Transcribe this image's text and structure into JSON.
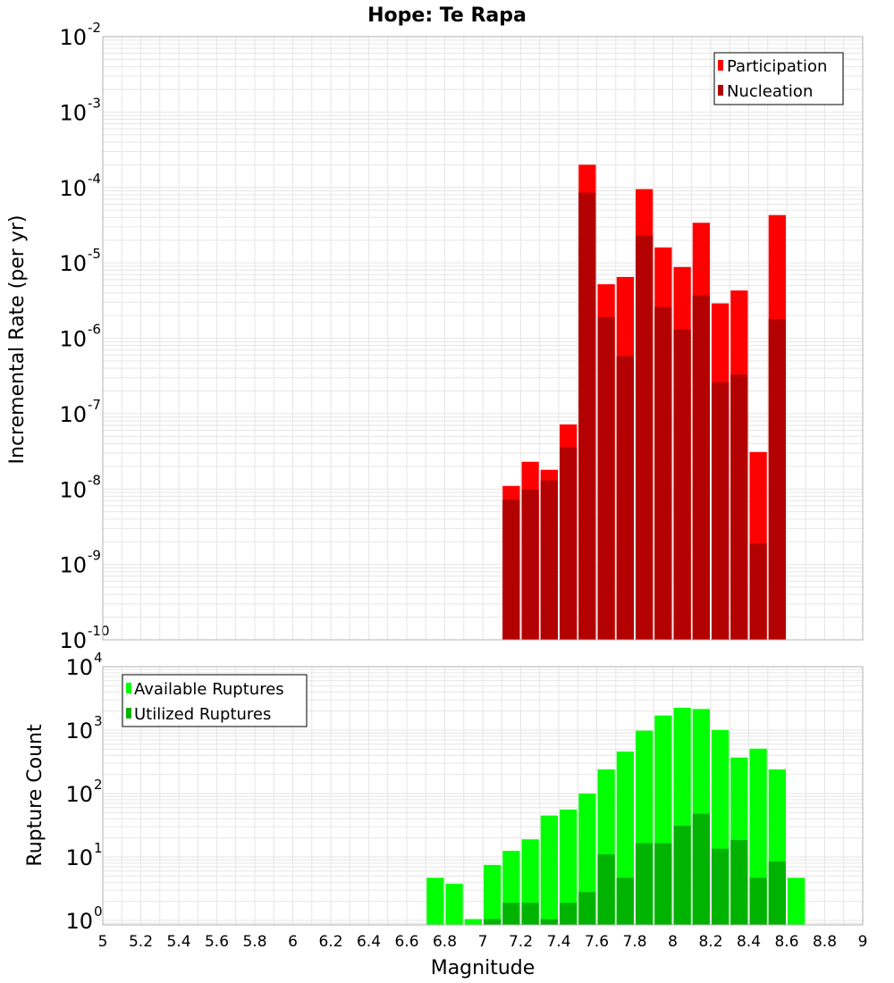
{
  "colors": {
    "participation": "#ff0000",
    "nucleation": "#b30000",
    "available": "#00ff00",
    "utilized": "#00b300",
    "grid": "#e6e6e6",
    "frame": "#b0b0b0"
  },
  "chart_data": [
    {
      "type": "bar",
      "title": "Hope: Te Rapa",
      "xlabel": "",
      "ylabel": "Incremental Rate (per yr)",
      "ylim": [
        1e-10,
        0.01
      ],
      "yscale": "log",
      "xlim": [
        5,
        9
      ],
      "legend": "top-right",
      "grid": true,
      "y_ticks": [
        {
          "base": "10",
          "exp": "-10"
        },
        {
          "base": "10",
          "exp": "-9"
        },
        {
          "base": "10",
          "exp": "-8"
        },
        {
          "base": "10",
          "exp": "-7"
        },
        {
          "base": "10",
          "exp": "-6"
        },
        {
          "base": "10",
          "exp": "-5"
        },
        {
          "base": "10",
          "exp": "-4"
        },
        {
          "base": "10",
          "exp": "-3"
        },
        {
          "base": "10",
          "exp": "-2"
        }
      ],
      "x": [
        7.15,
        7.25,
        7.35,
        7.45,
        7.55,
        7.65,
        7.75,
        7.85,
        7.95,
        8.05,
        8.15,
        8.25,
        8.35,
        8.45,
        8.55
      ],
      "series": [
        {
          "name": "Participation",
          "values": [
            1.1e-08,
            2.3e-08,
            1.8e-08,
            7.2e-08,
            0.0002,
            5.2e-06,
            6.5e-06,
            9.5e-05,
            1.6e-05,
            8.8e-06,
            3.4e-05,
            2.9e-06,
            4.3e-06,
            3.1e-08,
            4.3e-05
          ]
        },
        {
          "name": "Nucleation",
          "values": [
            7.2e-09,
            9.8e-09,
            1.3e-08,
            3.6e-08,
            8.5e-05,
            1.9e-06,
            5.8e-07,
            2.3e-05,
            2.6e-06,
            1.3e-06,
            3.7e-06,
            2.6e-07,
            3.3e-07,
            1.9e-09,
            1.8e-06
          ]
        }
      ]
    },
    {
      "type": "bar",
      "title": "",
      "xlabel": "Magnitude",
      "ylabel": "Rupture Count",
      "ylim": [
        0.85,
        10000
      ],
      "yscale": "log",
      "xlim": [
        5,
        9
      ],
      "legend": "top-left",
      "grid": true,
      "y_ticks": [
        {
          "base": "10",
          "exp": "0"
        },
        {
          "base": "10",
          "exp": "1"
        },
        {
          "base": "10",
          "exp": "2"
        },
        {
          "base": "10",
          "exp": "3"
        },
        {
          "base": "10",
          "exp": "4"
        }
      ],
      "x_tick_labels": [
        "5",
        "5.2",
        "5.4",
        "5.6",
        "5.8",
        "6",
        "6.2",
        "6.4",
        "6.6",
        "6.8",
        "7",
        "7.2",
        "7.4",
        "7.6",
        "7.8",
        "8",
        "8.2",
        "8.4",
        "8.6",
        "8.8",
        "9"
      ],
      "x": [
        6.75,
        6.85,
        6.95,
        7.05,
        7.15,
        7.25,
        7.35,
        7.45,
        7.55,
        7.65,
        7.75,
        7.85,
        7.95,
        8.05,
        8.15,
        8.25,
        8.35,
        8.45,
        8.55,
        8.65
      ],
      "series": [
        {
          "name": "Available Ruptures",
          "values": [
            4.7,
            3.8,
            1.05,
            7.5,
            12.5,
            19,
            45,
            56,
            100,
            240,
            460,
            980,
            1700,
            2250,
            2150,
            1000,
            370,
            510,
            240,
            4.7
          ]
        },
        {
          "name": "Utilized Ruptures",
          "values": [
            null,
            null,
            null,
            1.05,
            1.9,
            1.9,
            1.05,
            1.9,
            2.8,
            11,
            4.7,
            16.5,
            16.5,
            31,
            48,
            13.5,
            18.5,
            4.7,
            8.5,
            null
          ]
        }
      ]
    }
  ]
}
